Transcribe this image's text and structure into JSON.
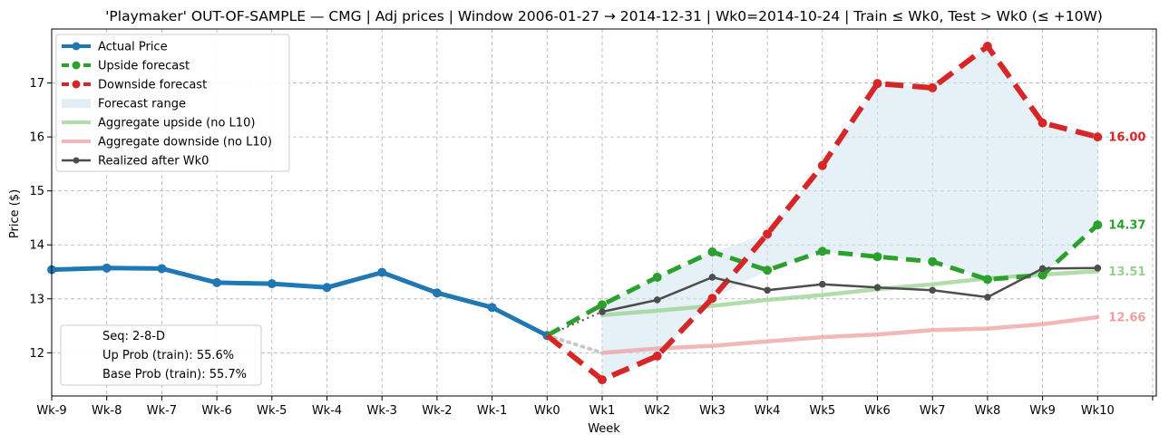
{
  "chart_data": {
    "type": "line",
    "title": "'Playmaker' OUT-OF-SAMPLE — CMG  |  Adj prices  |  Window 2006-01-27 → 2014-12-31  |  Wk0=2014-10-24  |  Train ≤ Wk0, Test > Wk0 (≤ +10W)",
    "xlabel": "Week",
    "ylabel": "Price ($)",
    "categories": [
      "Wk-9",
      "Wk-8",
      "Wk-7",
      "Wk-6",
      "Wk-5",
      "Wk-4",
      "Wk-3",
      "Wk-2",
      "Wk-1",
      "Wk0",
      "Wk1",
      "Wk2",
      "Wk3",
      "Wk4",
      "Wk5",
      "Wk6",
      "Wk7",
      "Wk8",
      "Wk9",
      "Wk10"
    ],
    "yticks": [
      12,
      13,
      14,
      15,
      16,
      17
    ],
    "ylim": [
      11.2,
      18.0
    ],
    "grid": true,
    "legend_placement": "top-left",
    "colors": {
      "actual": "#1f77b4",
      "upside": "#2ca02c",
      "downside": "#d62728",
      "range_fill": "#cfe3f0",
      "agg_up": "#98d18f",
      "agg_down": "#eea0a0",
      "realized": "#4d4d4d",
      "bridge": "#c8c8c8"
    },
    "series": [
      {
        "name": "Actual Price",
        "key": "actual",
        "x": [
          "Wk-9",
          "Wk-8",
          "Wk-7",
          "Wk-6",
          "Wk-5",
          "Wk-4",
          "Wk-3",
          "Wk-2",
          "Wk-1",
          "Wk0"
        ],
        "values": [
          13.54,
          13.57,
          13.56,
          13.3,
          13.28,
          13.21,
          13.49,
          13.11,
          12.84,
          12.32
        ]
      },
      {
        "name": "Upside forecast",
        "key": "upside",
        "x": [
          "Wk1",
          "Wk2",
          "Wk3",
          "Wk4",
          "Wk5",
          "Wk6",
          "Wk7",
          "Wk8",
          "Wk9",
          "Wk10"
        ],
        "values": [
          12.89,
          13.4,
          13.87,
          13.53,
          13.88,
          13.78,
          13.69,
          13.36,
          13.44,
          14.37
        ]
      },
      {
        "name": "Downside forecast",
        "key": "downside",
        "x": [
          "Wk1",
          "Wk2",
          "Wk3",
          "Wk4",
          "Wk5",
          "Wk6",
          "Wk7",
          "Wk8",
          "Wk9",
          "Wk10"
        ],
        "values": [
          11.5,
          11.94,
          13.01,
          14.2,
          15.47,
          16.99,
          16.91,
          17.68,
          16.26,
          16.0
        ]
      },
      {
        "name": "Forecast range",
        "key": "range"
      },
      {
        "name": "Aggregate upside (no L10)",
        "key": "agg_up",
        "x": [
          "Wk1",
          "Wk2",
          "Wk3",
          "Wk4",
          "Wk5",
          "Wk6",
          "Wk7",
          "Wk8",
          "Wk9",
          "Wk10"
        ],
        "values": [
          12.7,
          12.78,
          12.87,
          12.98,
          13.07,
          13.18,
          13.27,
          13.38,
          13.45,
          13.51
        ]
      },
      {
        "name": "Aggregate downside (no L10)",
        "key": "agg_down",
        "x": [
          "Wk1",
          "Wk2",
          "Wk3",
          "Wk4",
          "Wk5",
          "Wk6",
          "Wk7",
          "Wk8",
          "Wk9",
          "Wk10"
        ],
        "values": [
          12.0,
          12.08,
          12.13,
          12.21,
          12.29,
          12.34,
          12.42,
          12.45,
          12.53,
          12.66
        ]
      },
      {
        "name": "Realized after Wk0",
        "key": "realized",
        "x": [
          "Wk1",
          "Wk2",
          "Wk3",
          "Wk4",
          "Wk5",
          "Wk6",
          "Wk7",
          "Wk8",
          "Wk9",
          "Wk10"
        ],
        "values": [
          12.76,
          12.98,
          13.4,
          13.16,
          13.27,
          13.21,
          13.16,
          13.03,
          13.56,
          13.57
        ]
      }
    ],
    "end_labels": [
      {
        "key": "downside",
        "text": "16.00",
        "value": 16.0
      },
      {
        "key": "upside",
        "text": "14.37",
        "value": 14.37
      },
      {
        "key": "agg_up",
        "text": "13.51",
        "value": 13.51
      },
      {
        "key": "agg_down",
        "text": "12.66",
        "value": 12.66
      }
    ],
    "info_box": [
      "Seq: 2-8-D",
      "Up Prob (train): 55.6%",
      "Base Prob (train): 55.7%"
    ]
  }
}
